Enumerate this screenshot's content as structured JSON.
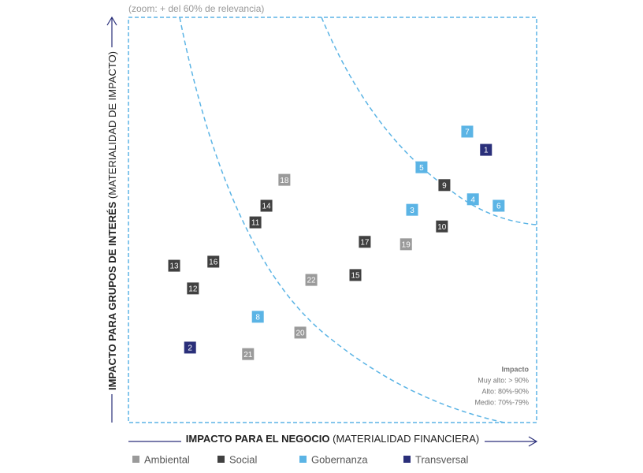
{
  "chart_data": {
    "type": "scatter",
    "subtitle": "(zoom: + del 60% de relevancia)",
    "x_label": "IMPACTO PARA EL NEGOCIO",
    "x_label_note": "(MATERIALIDAD FINANCIERA)",
    "y_label": "IMPACTO PARA GRUPOS DE INTERÉS",
    "y_label_note": "(MATERIALIDAD DE IMPACTO)",
    "xlim": [
      0,
      100
    ],
    "ylim": [
      0,
      100
    ],
    "impact_legend": {
      "title": "Impacto",
      "items": [
        "Muy alto: > 90%",
        "Alto: 80%-90%",
        "Medio: 70%-79%"
      ]
    },
    "series": [
      {
        "name": "Ambiental",
        "color": "#9a9a9a",
        "labels": [
          18,
          22,
          20,
          21,
          19
        ],
        "x": [
          38.2,
          44.8,
          42.1,
          29.3,
          68.0
        ],
        "y": [
          59.9,
          35.2,
          22.2,
          16.9,
          44.0
        ]
      },
      {
        "name": "Social",
        "color": "#404040",
        "labels": [
          14,
          11,
          13,
          16,
          12,
          17,
          15,
          9,
          10
        ],
        "x": [
          33.8,
          31.1,
          11.2,
          20.8,
          15.8,
          57.9,
          55.6,
          77.4,
          76.8
        ],
        "y": [
          53.5,
          49.4,
          38.7,
          39.7,
          33.1,
          44.6,
          36.4,
          58.6,
          48.4
        ]
      },
      {
        "name": "Gobernanza",
        "color": "#5bb4e5",
        "labels": [
          7,
          5,
          4,
          6,
          3,
          8
        ],
        "x": [
          83.0,
          71.8,
          84.4,
          90.7,
          69.5,
          31.7
        ],
        "y": [
          71.8,
          63.0,
          55.1,
          53.5,
          52.5,
          26.1
        ]
      },
      {
        "name": "Transversal",
        "color": "#2a2f7a",
        "labels": [
          1,
          2
        ],
        "x": [
          87.6,
          15.1
        ],
        "y": [
          67.3,
          18.5
        ]
      }
    ]
  }
}
